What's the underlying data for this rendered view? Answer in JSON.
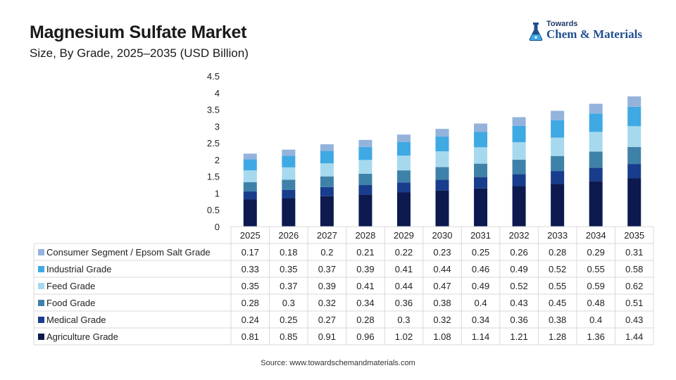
{
  "header": {
    "title": "Magnesium Sulfate Market",
    "subtitle": "Size, By Grade, 2025–2035 (USD Billion)"
  },
  "logo": {
    "line1": "Towards",
    "line2": "Chem & Materials"
  },
  "source": "Source: www.towardschemandmaterials.com",
  "chart_data": {
    "type": "bar",
    "stacked": true,
    "categories": [
      "2025",
      "2026",
      "2027",
      "2028",
      "2029",
      "2030",
      "2031",
      "2032",
      "2033",
      "2034",
      "2035"
    ],
    "ylim": [
      0,
      4.5
    ],
    "yticks": [
      "0",
      "0.5",
      "1",
      "1.5",
      "2",
      "2.5",
      "3",
      "3.5",
      "4",
      "4.5"
    ],
    "grid": false,
    "legend": "table-left",
    "series": [
      {
        "name": "Agriculture Grade",
        "color": "#0d1a4f",
        "values": [
          0.81,
          0.85,
          0.91,
          0.96,
          1.02,
          1.08,
          1.14,
          1.21,
          1.28,
          1.36,
          1.44
        ]
      },
      {
        "name": "Medical Grade",
        "color": "#183d8c",
        "values": [
          0.24,
          0.25,
          0.27,
          0.28,
          0.3,
          0.32,
          0.34,
          0.36,
          0.38,
          0.4,
          0.43
        ]
      },
      {
        "name": "Food Grade",
        "color": "#3f82a9",
        "values": [
          0.28,
          0.3,
          0.32,
          0.34,
          0.36,
          0.38,
          0.4,
          0.43,
          0.45,
          0.48,
          0.51
        ]
      },
      {
        "name": "Feed Grade",
        "color": "#a7d9ee",
        "values": [
          0.35,
          0.37,
          0.39,
          0.41,
          0.44,
          0.47,
          0.49,
          0.52,
          0.55,
          0.59,
          0.62
        ]
      },
      {
        "name": "Industrial Grade",
        "color": "#3fa9e3",
        "values": [
          0.33,
          0.35,
          0.37,
          0.39,
          0.41,
          0.44,
          0.46,
          0.49,
          0.52,
          0.55,
          0.58
        ]
      },
      {
        "name": "Consumer Segment / Epsom Salt Grade",
        "color": "#93b3dc",
        "values": [
          0.17,
          0.18,
          0.2,
          0.21,
          0.22,
          0.23,
          0.25,
          0.26,
          0.28,
          0.29,
          0.31
        ]
      }
    ],
    "table_order": [
      "Consumer Segment / Epsom Salt Grade",
      "Industrial Grade",
      "Feed Grade",
      "Food Grade",
      "Medical Grade",
      "Agriculture Grade"
    ],
    "table_values": {
      "Consumer Segment / Epsom Salt Grade": [
        "0.17",
        "0.18",
        "0.2",
        "0.21",
        "0.22",
        "0.23",
        "0.25",
        "0.26",
        "0.28",
        "0.29",
        "0.31"
      ],
      "Industrial Grade": [
        "0.33",
        "0.35",
        "0.37",
        "0.39",
        "0.41",
        "0.44",
        "0.46",
        "0.49",
        "0.52",
        "0.55",
        "0.58"
      ],
      "Feed Grade": [
        "0.35",
        "0.37",
        "0.39",
        "0.41",
        "0.44",
        "0.47",
        "0.49",
        "0.52",
        "0.55",
        "0.59",
        "0.62"
      ],
      "Food Grade": [
        "0.28",
        "0.3",
        "0.32",
        "0.34",
        "0.36",
        "0.38",
        "0.4",
        "0.43",
        "0.45",
        "0.48",
        "0.51"
      ],
      "Medical Grade": [
        "0.24",
        "0.25",
        "0.27",
        "0.28",
        "0.3",
        "0.32",
        "0.34",
        "0.36",
        "0.38",
        "0.4",
        "0.43"
      ],
      "Agriculture Grade": [
        "0.81",
        "0.85",
        "0.91",
        "0.96",
        "1.02",
        "1.08",
        "1.14",
        "1.21",
        "1.28",
        "1.36",
        "1.44"
      ]
    }
  }
}
